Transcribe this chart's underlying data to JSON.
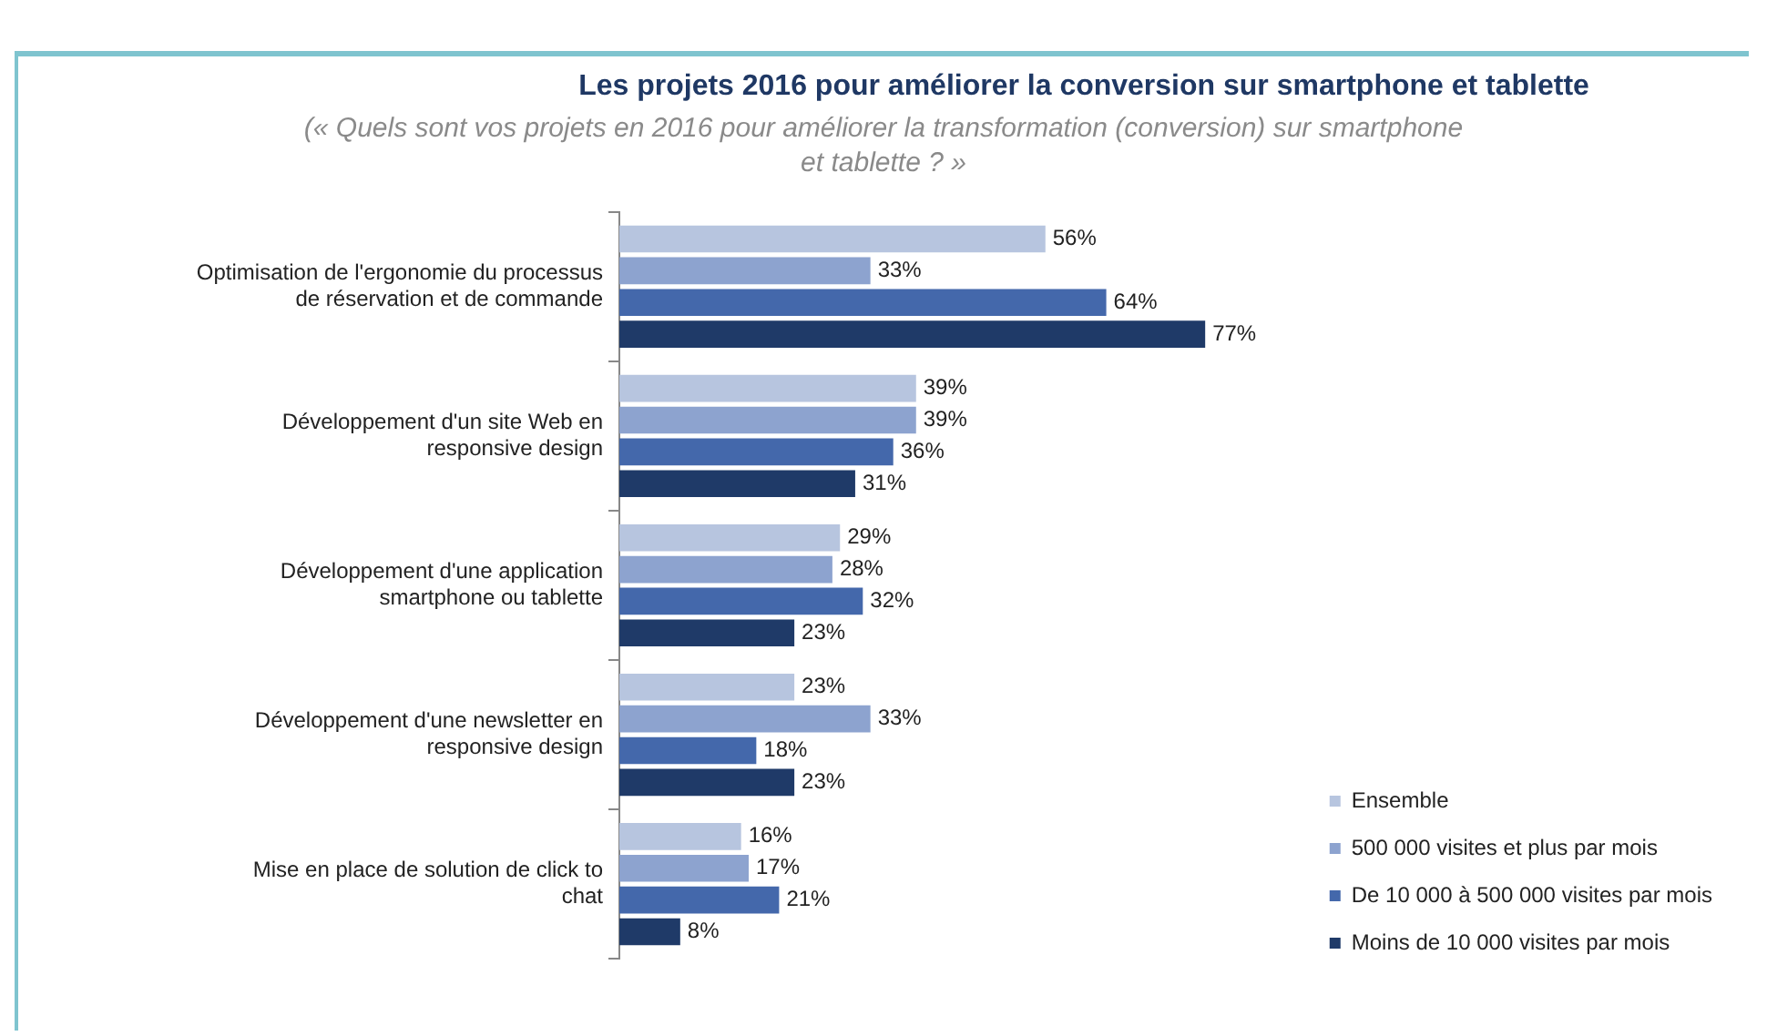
{
  "chart_data": {
    "type": "bar",
    "orientation": "horizontal",
    "title": "Les projets 2016 pour améliorer la conversion sur smartphone et tablette",
    "subtitle": "(« Quels sont vos projets en 2016 pour améliorer la transformation (conversion) sur smartphone et tablette ? »",
    "categories": [
      "Optimisation de l'ergonomie du processus de réservation et de commande",
      "Développement d'un site Web en responsive design",
      "Développement d'une application smartphone ou tablette",
      "Développement d'une newsletter en responsive design",
      "Mise en place de solution de click to chat"
    ],
    "series": [
      {
        "name": "Ensemble",
        "color": "#b7c5df",
        "values": [
          56,
          39,
          29,
          23,
          16
        ],
        "value_labels": [
          "56%",
          "39%",
          "29%",
          "23%",
          "16%"
        ]
      },
      {
        "name": "500 000 visites et plus par mois",
        "color": "#8da3cf",
        "values": [
          33,
          39,
          28,
          33,
          17
        ],
        "value_labels": [
          "33%",
          "39%",
          "28%",
          "33%",
          "17%"
        ]
      },
      {
        "name": "De 10 000 à 500 000 visites par mois",
        "color": "#4468ab",
        "values": [
          64,
          36,
          32,
          18,
          21
        ],
        "value_labels": [
          "64%",
          "36%",
          "32%",
          "18%",
          "21%"
        ]
      },
      {
        "name": "Moins de 10 000 visites par mois",
        "color": "#1f3a68",
        "values": [
          77,
          31,
          23,
          23,
          8
        ],
        "value_labels": [
          "77%",
          "31%",
          "23%",
          "23%",
          "8%"
        ]
      }
    ],
    "legend": "bottom right",
    "grid": false
  }
}
